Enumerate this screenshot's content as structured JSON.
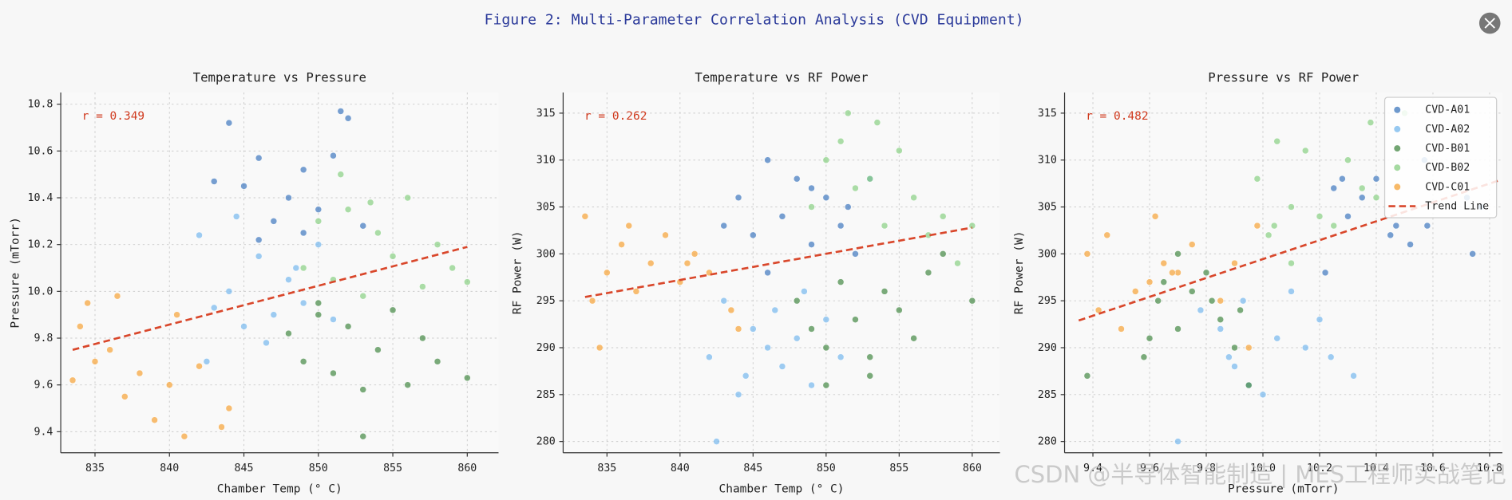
{
  "title": "Figure 2: Multi-Parameter Correlation Analysis (CVD Equipment)",
  "watermark": "CSDN @半导体智能制造 | MES工程师实战笔记",
  "chart_data": [
    {
      "type": "scatter",
      "title": "Temperature vs Pressure",
      "xlabel": "Chamber Temp (° C)",
      "ylabel": "Pressure (mTorr)",
      "annotation": "r = 0.349",
      "annotation_color": "#d03a1e",
      "grid": true,
      "xlim": [
        832.7,
        862.1
      ],
      "xticks": [
        835,
        840,
        845,
        850,
        855,
        860
      ],
      "ylim": [
        9.31,
        10.85
      ],
      "yticks": [
        {
          "value": 9.4,
          "label": "9.4"
        },
        {
          "value": 9.6,
          "label": "9.6"
        },
        {
          "value": 9.8,
          "label": "9.8"
        },
        {
          "value": 10,
          "label": "10.0"
        },
        {
          "value": 10.2,
          "label": "10.2"
        },
        {
          "value": 10.4,
          "label": "10.4"
        },
        {
          "value": 10.6,
          "label": "10.6"
        },
        {
          "value": 10.8,
          "label": "10.8"
        }
      ],
      "series": [
        {
          "color": "#4a7fc1",
          "x": [
            844,
            845,
            846,
            847,
            848,
            849,
            850,
            851,
            851.5,
            852,
            853,
            846,
            849,
            843
          ],
          "values": [
            10.72,
            10.45,
            10.57,
            10.3,
            10.4,
            10.52,
            10.35,
            10.58,
            10.77,
            10.74,
            10.28,
            10.22,
            10.25,
            10.47
          ]
        },
        {
          "color": "#7dbbee",
          "x": [
            842,
            843,
            844,
            845,
            846,
            847,
            848,
            849,
            850,
            844.5,
            846.5,
            848.5,
            842.5,
            851
          ],
          "values": [
            10.24,
            9.93,
            10.0,
            9.85,
            10.15,
            9.9,
            10.05,
            9.95,
            10.2,
            10.32,
            9.78,
            10.1,
            9.7,
            9.88
          ]
        },
        {
          "color": "#4f8f4f",
          "x": [
            848,
            849,
            850,
            851,
            852,
            853,
            854,
            855,
            856,
            857,
            858,
            853,
            850,
            860
          ],
          "values": [
            9.82,
            9.7,
            9.9,
            9.65,
            9.85,
            9.58,
            9.75,
            9.92,
            9.6,
            9.8,
            9.7,
            9.38,
            9.95,
            9.63
          ]
        },
        {
          "color": "#8fd18a",
          "x": [
            849,
            850,
            851,
            852,
            853,
            854,
            855,
            856,
            857,
            858,
            859,
            860,
            851.5,
            853.5
          ],
          "values": [
            10.1,
            10.3,
            10.05,
            10.35,
            9.98,
            10.25,
            10.15,
            10.4,
            10.02,
            10.2,
            10.1,
            10.04,
            10.5,
            10.38
          ]
        },
        {
          "color": "#f5a742",
          "x": [
            833.5,
            834,
            835,
            836,
            837,
            838,
            839,
            840,
            841,
            842,
            843.5,
            836.5,
            840.5,
            844,
            834.5
          ],
          "values": [
            9.62,
            9.85,
            9.7,
            9.75,
            9.55,
            9.65,
            9.45,
            9.6,
            9.38,
            9.68,
            9.42,
            9.98,
            9.9,
            9.5,
            9.95
          ]
        }
      ],
      "trend_line": {
        "color": "#d9472b",
        "x": [
          833.5,
          860
        ],
        "values": [
          9.75,
          10.19
        ]
      }
    },
    {
      "type": "scatter",
      "title": "Temperature vs RF Power",
      "xlabel": "Chamber Temp (° C)",
      "ylabel": "RF Power (W)",
      "annotation": "r = 0.262",
      "annotation_color": "#d03a1e",
      "grid": true,
      "xlim": [
        832,
        861.9
      ],
      "xticks": [
        835,
        840,
        845,
        850,
        855,
        860
      ],
      "ylim": [
        278.8,
        317.2
      ],
      "yticks": [
        280,
        285,
        290,
        295,
        300,
        305,
        310,
        315
      ],
      "series": [
        {
          "color": "#4a7fc1",
          "x": [
            844,
            845,
            846,
            847,
            848,
            849,
            850,
            851,
            851.5,
            852,
            853,
            846,
            849,
            843
          ],
          "values": [
            306,
            302,
            310,
            304,
            308,
            301,
            306,
            303,
            305,
            300,
            308,
            298,
            307,
            303
          ]
        },
        {
          "color": "#7dbbee",
          "x": [
            842,
            843,
            844,
            845,
            846,
            847,
            848,
            849,
            850,
            844.5,
            846.5,
            848.5,
            842.5,
            851
          ],
          "values": [
            289,
            295,
            285,
            292,
            290,
            288,
            291,
            286,
            293,
            287,
            294,
            296,
            280,
            289
          ]
        },
        {
          "color": "#4f8f4f",
          "x": [
            848,
            849,
            850,
            851,
            852,
            853,
            854,
            855,
            856,
            857,
            858,
            853,
            850,
            860
          ],
          "values": [
            295,
            292,
            290,
            297,
            293,
            289,
            296,
            294,
            291,
            298,
            300,
            287,
            286,
            295
          ]
        },
        {
          "color": "#8fd18a",
          "x": [
            849,
            850,
            851,
            852,
            853,
            854,
            855,
            856,
            857,
            858,
            859,
            860,
            851.5,
            853.5
          ],
          "values": [
            305,
            310,
            312,
            307,
            308,
            303,
            311,
            306,
            302,
            304,
            299,
            303,
            315,
            314
          ]
        },
        {
          "color": "#f5a742",
          "x": [
            833.5,
            834,
            835,
            836,
            837,
            838,
            839,
            840,
            841,
            842,
            843.5,
            836.5,
            840.5,
            844,
            834.5
          ],
          "values": [
            304,
            295,
            298,
            301,
            296,
            299,
            302,
            297,
            300,
            298,
            294,
            303,
            299,
            292,
            290
          ]
        }
      ],
      "trend_line": {
        "color": "#d9472b",
        "x": [
          833.5,
          860
        ],
        "values": [
          295.4,
          302.8
        ]
      }
    },
    {
      "type": "scatter",
      "title": "Pressure vs RF Power",
      "xlabel": "Pressure (mTorr)",
      "ylabel": "RF Power (W)",
      "annotation": "r = 0.482",
      "annotation_color": "#d03a1e",
      "grid": true,
      "legend": "upper right",
      "xlim": [
        9.3,
        10.845
      ],
      "xticks": [
        {
          "value": 9.4,
          "label": "9.4"
        },
        {
          "value": 9.6,
          "label": "9.6"
        },
        {
          "value": 9.8,
          "label": "9.8"
        },
        {
          "value": 10,
          "label": "10.0"
        },
        {
          "value": 10.2,
          "label": "10.2"
        },
        {
          "value": 10.4,
          "label": "10.4"
        },
        {
          "value": 10.6,
          "label": "10.6"
        },
        {
          "value": 10.8,
          "label": "10.8"
        }
      ],
      "ylim": [
        278.8,
        317.2
      ],
      "yticks": [
        280,
        285,
        290,
        295,
        300,
        305,
        310,
        315
      ],
      "series": [
        {
          "name": "CVD-A01",
          "color": "#4a7fc1",
          "x": [
            10.72,
            10.45,
            10.57,
            10.3,
            10.4,
            10.52,
            10.35,
            10.58,
            10.77,
            10.74,
            10.28,
            10.22,
            10.25,
            10.47
          ],
          "values": [
            306,
            302,
            310,
            304,
            308,
            301,
            306,
            303,
            305,
            300,
            308,
            298,
            307,
            303
          ]
        },
        {
          "name": "CVD-A02",
          "color": "#7dbbee",
          "x": [
            10.24,
            9.93,
            10.0,
            9.85,
            10.15,
            9.9,
            10.05,
            9.95,
            10.2,
            10.32,
            9.78,
            10.1,
            9.7,
            9.88
          ],
          "values": [
            289,
            295,
            285,
            292,
            290,
            288,
            291,
            286,
            293,
            287,
            294,
            296,
            280,
            289
          ]
        },
        {
          "name": "CVD-B01",
          "color": "#4f8f4f",
          "x": [
            9.82,
            9.7,
            9.9,
            9.65,
            9.85,
            9.58,
            9.75,
            9.92,
            9.6,
            9.8,
            9.7,
            9.38,
            9.95,
            9.63
          ],
          "values": [
            295,
            292,
            290,
            297,
            293,
            289,
            296,
            294,
            291,
            298,
            300,
            287,
            286,
            295
          ]
        },
        {
          "name": "CVD-B02",
          "color": "#8fd18a",
          "x": [
            10.1,
            10.3,
            10.05,
            10.35,
            9.98,
            10.25,
            10.15,
            10.4,
            10.02,
            10.2,
            10.1,
            10.04,
            10.5,
            10.38
          ],
          "values": [
            305,
            310,
            312,
            307,
            308,
            303,
            311,
            306,
            302,
            304,
            299,
            303,
            315,
            314
          ]
        },
        {
          "name": "CVD-C01",
          "color": "#f5a742",
          "x": [
            9.62,
            9.85,
            9.7,
            9.75,
            9.55,
            9.65,
            9.45,
            9.6,
            9.38,
            9.68,
            9.42,
            9.98,
            9.9,
            9.5,
            9.95
          ],
          "values": [
            304,
            295,
            298,
            301,
            296,
            299,
            302,
            297,
            300,
            298,
            294,
            303,
            299,
            292,
            290
          ]
        }
      ],
      "trend_line": {
        "name": "Trend Line",
        "color": "#d9472b",
        "x": [
          9.35,
          10.83
        ],
        "values": [
          292.9,
          307.8
        ]
      }
    }
  ]
}
